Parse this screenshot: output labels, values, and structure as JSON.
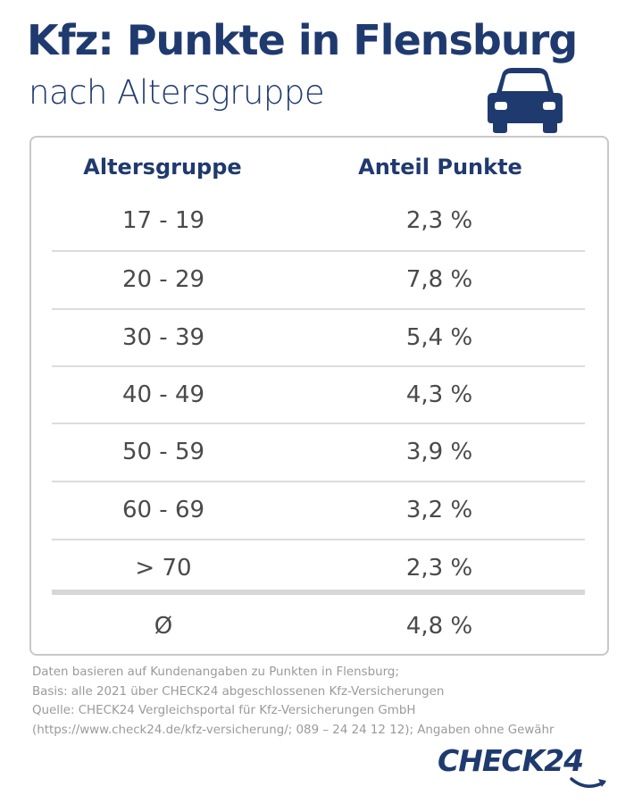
{
  "header": {
    "title": "Kfz: Punkte in Flensburg",
    "subtitle": "nach Altersgruppe"
  },
  "icons": {
    "car": "car-icon",
    "logo_arrow": "swoosh-arrow-icon"
  },
  "colors": {
    "primary": "#1f3a6e",
    "text": "#4a4a4a",
    "note": "#9a9a9a",
    "border": "#c8c8c8"
  },
  "chart_data": {
    "type": "table",
    "columns": [
      "Altersgruppe",
      "Anteil Punkte"
    ],
    "rows": [
      [
        "17 - 19",
        "2,3 %"
      ],
      [
        "20 - 29",
        "7,8 %"
      ],
      [
        "30 - 39",
        "5,4 %"
      ],
      [
        "40 - 49",
        "4,3 %"
      ],
      [
        "50 - 59",
        "3,9 %"
      ],
      [
        "60 - 69",
        "3,2 %"
      ],
      [
        "> 70",
        "2,3 %"
      ]
    ],
    "summary_row": [
      "Ø",
      "4,8 %"
    ]
  },
  "notes": [
    "Daten basieren auf Kundenangaben zu Punkten in Flensburg;",
    "Basis: alle 2021 über CHECK24 abgeschlossenen Kfz-Versicherungen",
    "Quelle: CHECK24 Vergleichsportal für Kfz-Versicherungen GmbH",
    "(https://www.check24.de/kfz-versicherung/; 089 – 24 24 12 12); Angaben ohne Gewähr"
  ],
  "logo": {
    "text": "CHECK24"
  }
}
